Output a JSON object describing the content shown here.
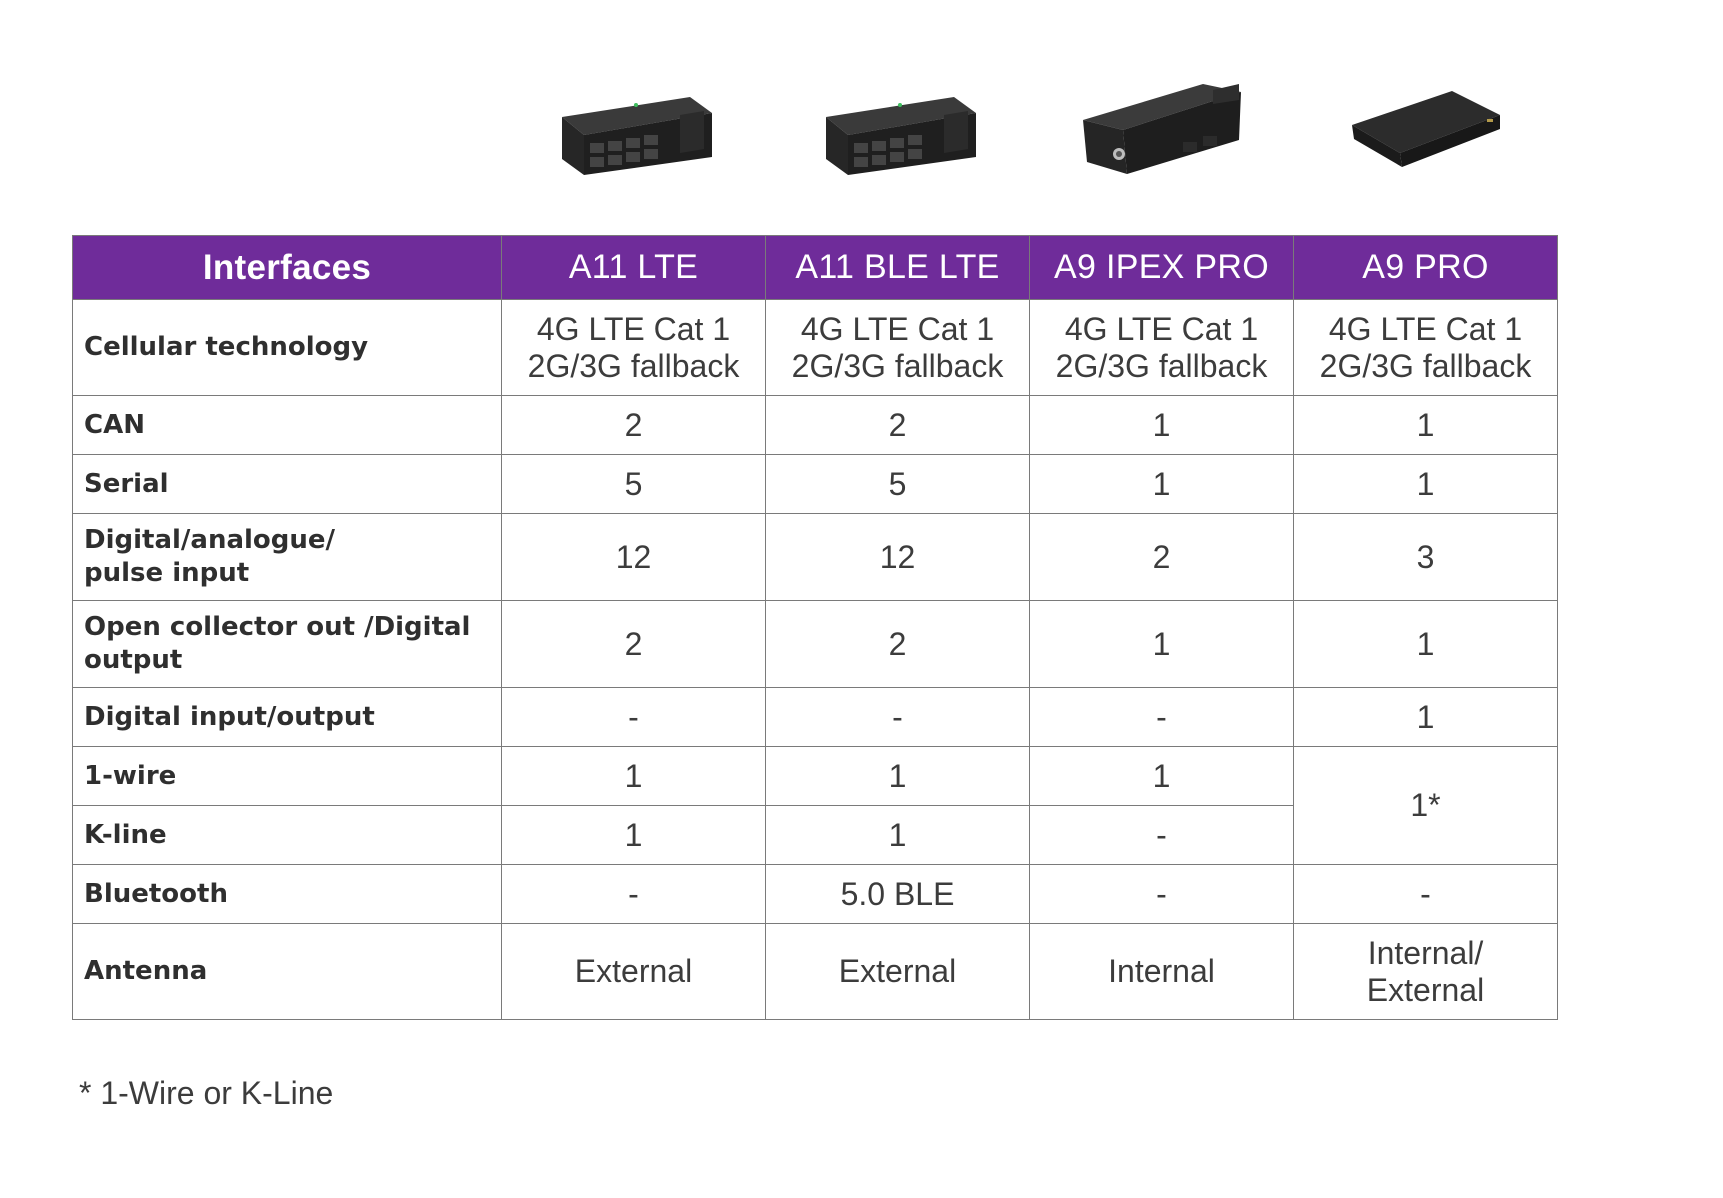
{
  "products": [
    {
      "name": "A11 LTE",
      "icon": "device-a11-lte-image"
    },
    {
      "name": "A11 BLE LTE",
      "icon": "device-a11-ble-lte-image"
    },
    {
      "name": "A9 IPEX PRO",
      "icon": "device-a9-ipex-pro-image"
    },
    {
      "name": "A9 PRO",
      "icon": "device-a9-pro-image"
    }
  ],
  "table": {
    "header_color": "#6f2c9a",
    "headers": [
      "Interfaces",
      "A11 LTE",
      "A11 BLE LTE",
      "A9 IPEX PRO",
      "A9 PRO"
    ],
    "rows": [
      {
        "label": "Cellular technology",
        "values": [
          [
            "4G LTE Cat 1",
            "2G/3G fallback"
          ],
          [
            "4G LTE Cat 1",
            "2G/3G fallback"
          ],
          [
            "4G LTE Cat 1",
            "2G/3G fallback"
          ],
          [
            "4G LTE Cat 1",
            "2G/3G fallback"
          ]
        ]
      },
      {
        "label": "CAN",
        "values": [
          "2",
          "2",
          "1",
          "1"
        ]
      },
      {
        "label": "Serial",
        "values": [
          "5",
          "5",
          "1",
          "1"
        ]
      },
      {
        "label_lines": [
          "Digital/analogue/",
          "pulse input"
        ],
        "values": [
          "12",
          "12",
          "2",
          "3"
        ]
      },
      {
        "label_lines": [
          "Open collector out /Digital",
          "output"
        ],
        "values": [
          "2",
          "2",
          "1",
          "1"
        ]
      },
      {
        "label": "Digital input/output",
        "values": [
          "-",
          "-",
          "-",
          "1"
        ]
      },
      {
        "label": "1-wire",
        "values": [
          "1",
          "1",
          "1"
        ],
        "merged_value": "1*"
      },
      {
        "label": "K-line",
        "values": [
          "1",
          "1",
          "-"
        ]
      },
      {
        "label": "Bluetooth",
        "values": [
          "-",
          "5.0 BLE",
          "-",
          "-"
        ]
      },
      {
        "label": "Antenna",
        "values": [
          "External",
          "External",
          "Internal",
          [
            "Internal/",
            "External"
          ]
        ]
      }
    ]
  },
  "footnote": "* 1-Wire or K-Line"
}
